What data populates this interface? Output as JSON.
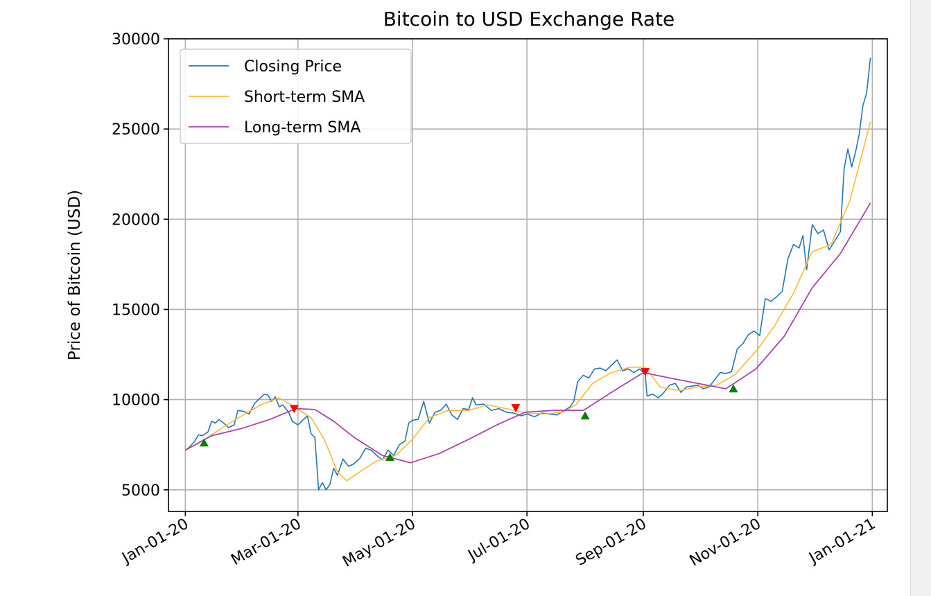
{
  "chart_data": {
    "type": "line",
    "title": "Bitcoin to USD Exchange Rate",
    "xlabel": "",
    "ylabel": "Price of Bitcoin (USD)",
    "xlim": [
      "2019-12-23",
      "2021-01-09"
    ],
    "ylim": [
      3800,
      30000
    ],
    "x_ticks": [
      "2020-01-01",
      "2020-03-01",
      "2020-05-01",
      "2020-07-01",
      "2020-09-01",
      "2020-11-01",
      "2021-01-01"
    ],
    "x_tick_labels": [
      "Jan-01-20",
      "Mar-01-20",
      "May-01-20",
      "Jul-01-20",
      "Sep-01-20",
      "Nov-01-20",
      "Jan-01-21"
    ],
    "y_ticks": [
      5000,
      10000,
      15000,
      20000,
      25000,
      30000
    ],
    "y_tick_labels": [
      "5000",
      "10000",
      "15000",
      "20000",
      "25000",
      "30000"
    ],
    "grid": true,
    "legend": "top-left",
    "series": [
      {
        "name": "Closing Price",
        "color": "#1f77b4",
        "points": [
          [
            "2020-01-01",
            7200
          ],
          [
            "2020-01-03",
            7350
          ],
          [
            "2020-01-06",
            7700
          ],
          [
            "2020-01-08",
            8050
          ],
          [
            "2020-01-10",
            8000
          ],
          [
            "2020-01-13",
            8200
          ],
          [
            "2020-01-15",
            8800
          ],
          [
            "2020-01-17",
            8700
          ],
          [
            "2020-01-19",
            8900
          ],
          [
            "2020-01-22",
            8650
          ],
          [
            "2020-01-24",
            8450
          ],
          [
            "2020-01-27",
            8600
          ],
          [
            "2020-01-29",
            9400
          ],
          [
            "2020-02-01",
            9350
          ],
          [
            "2020-02-04",
            9200
          ],
          [
            "2020-02-07",
            9800
          ],
          [
            "2020-02-10",
            10100
          ],
          [
            "2020-02-12",
            10300
          ],
          [
            "2020-02-14",
            10250
          ],
          [
            "2020-02-16",
            9900
          ],
          [
            "2020-02-18",
            10150
          ],
          [
            "2020-02-20",
            9600
          ],
          [
            "2020-02-22",
            9700
          ],
          [
            "2020-02-25",
            9300
          ],
          [
            "2020-02-27",
            8800
          ],
          [
            "2020-03-01",
            8600
          ],
          [
            "2020-03-03",
            8800
          ],
          [
            "2020-03-06",
            9100
          ],
          [
            "2020-03-08",
            8100
          ],
          [
            "2020-03-10",
            7900
          ],
          [
            "2020-03-12",
            5000
          ],
          [
            "2020-03-14",
            5400
          ],
          [
            "2020-03-16",
            5000
          ],
          [
            "2020-03-18",
            5300
          ],
          [
            "2020-03-20",
            6200
          ],
          [
            "2020-03-22",
            5800
          ],
          [
            "2020-03-25",
            6700
          ],
          [
            "2020-03-28",
            6300
          ],
          [
            "2020-03-31",
            6450
          ],
          [
            "2020-04-03",
            6750
          ],
          [
            "2020-04-06",
            7300
          ],
          [
            "2020-04-09",
            7200
          ],
          [
            "2020-04-12",
            6900
          ],
          [
            "2020-04-15",
            6650
          ],
          [
            "2020-04-18",
            7200
          ],
          [
            "2020-04-21",
            6900
          ],
          [
            "2020-04-24",
            7500
          ],
          [
            "2020-04-27",
            7700
          ],
          [
            "2020-04-29",
            8700
          ],
          [
            "2020-05-01",
            8850
          ],
          [
            "2020-05-04",
            8900
          ],
          [
            "2020-05-07",
            9900
          ],
          [
            "2020-05-10",
            8700
          ],
          [
            "2020-05-13",
            9300
          ],
          [
            "2020-05-16",
            9400
          ],
          [
            "2020-05-19",
            9750
          ],
          [
            "2020-05-22",
            9150
          ],
          [
            "2020-05-25",
            8900
          ],
          [
            "2020-05-28",
            9500
          ],
          [
            "2020-05-31",
            9450
          ],
          [
            "2020-06-02",
            10100
          ],
          [
            "2020-06-04",
            9700
          ],
          [
            "2020-06-08",
            9750
          ],
          [
            "2020-06-12",
            9400
          ],
          [
            "2020-06-16",
            9500
          ],
          [
            "2020-06-20",
            9300
          ],
          [
            "2020-06-24",
            9250
          ],
          [
            "2020-06-28",
            9100
          ],
          [
            "2020-07-01",
            9200
          ],
          [
            "2020-07-05",
            9050
          ],
          [
            "2020-07-09",
            9250
          ],
          [
            "2020-07-13",
            9200
          ],
          [
            "2020-07-17",
            9150
          ],
          [
            "2020-07-21",
            9400
          ],
          [
            "2020-07-24",
            9600
          ],
          [
            "2020-07-26",
            9900
          ],
          [
            "2020-07-28",
            11000
          ],
          [
            "2020-07-31",
            11350
          ],
          [
            "2020-08-03",
            11200
          ],
          [
            "2020-08-06",
            11700
          ],
          [
            "2020-08-09",
            11750
          ],
          [
            "2020-08-12",
            11600
          ],
          [
            "2020-08-15",
            11900
          ],
          [
            "2020-08-18",
            12200
          ],
          [
            "2020-08-21",
            11600
          ],
          [
            "2020-08-24",
            11700
          ],
          [
            "2020-08-27",
            11500
          ],
          [
            "2020-08-30",
            11700
          ],
          [
            "2020-09-02",
            11400
          ],
          [
            "2020-09-03",
            10200
          ],
          [
            "2020-09-06",
            10300
          ],
          [
            "2020-09-09",
            10100
          ],
          [
            "2020-09-12",
            10400
          ],
          [
            "2020-09-15",
            10800
          ],
          [
            "2020-09-18",
            10900
          ],
          [
            "2020-09-21",
            10400
          ],
          [
            "2020-09-24",
            10700
          ],
          [
            "2020-09-27",
            10750
          ],
          [
            "2020-09-30",
            10800
          ],
          [
            "2020-10-03",
            10600
          ],
          [
            "2020-10-06",
            10700
          ],
          [
            "2020-10-09",
            11100
          ],
          [
            "2020-10-12",
            11500
          ],
          [
            "2020-10-15",
            11450
          ],
          [
            "2020-10-18",
            11550
          ],
          [
            "2020-10-21",
            12800
          ],
          [
            "2020-10-24",
            13100
          ],
          [
            "2020-10-27",
            13600
          ],
          [
            "2020-10-30",
            13800
          ],
          [
            "2020-11-02",
            13550
          ],
          [
            "2020-11-05",
            15600
          ],
          [
            "2020-11-08",
            15450
          ],
          [
            "2020-11-11",
            15700
          ],
          [
            "2020-11-14",
            16000
          ],
          [
            "2020-11-17",
            17800
          ],
          [
            "2020-11-20",
            18600
          ],
          [
            "2020-11-23",
            18400
          ],
          [
            "2020-11-25",
            19100
          ],
          [
            "2020-11-27",
            17200
          ],
          [
            "2020-11-30",
            19700
          ],
          [
            "2020-12-03",
            19200
          ],
          [
            "2020-12-06",
            19400
          ],
          [
            "2020-12-09",
            18300
          ],
          [
            "2020-12-12",
            18800
          ],
          [
            "2020-12-15",
            19300
          ],
          [
            "2020-12-17",
            22800
          ],
          [
            "2020-12-19",
            23900
          ],
          [
            "2020-12-21",
            22900
          ],
          [
            "2020-12-23",
            23700
          ],
          [
            "2020-12-25",
            24700
          ],
          [
            "2020-12-27",
            26300
          ],
          [
            "2020-12-29",
            27000
          ],
          [
            "2020-12-31",
            28950
          ]
        ]
      },
      {
        "name": "Short-term SMA",
        "color": "#ffb833",
        "points": [
          [
            "2020-01-01",
            7200
          ],
          [
            "2020-01-10",
            7700
          ],
          [
            "2020-01-20",
            8400
          ],
          [
            "2020-01-31",
            9100
          ],
          [
            "2020-02-10",
            9700
          ],
          [
            "2020-02-20",
            10100
          ],
          [
            "2020-02-28",
            9600
          ],
          [
            "2020-03-08",
            9000
          ],
          [
            "2020-03-15",
            7800
          ],
          [
            "2020-03-22",
            6000
          ],
          [
            "2020-03-27",
            5500
          ],
          [
            "2020-04-03",
            6000
          ],
          [
            "2020-04-12",
            6600
          ],
          [
            "2020-04-22",
            6900
          ],
          [
            "2020-05-01",
            7800
          ],
          [
            "2020-05-10",
            9000
          ],
          [
            "2020-05-20",
            9400
          ],
          [
            "2020-05-31",
            9400
          ],
          [
            "2020-06-10",
            9700
          ],
          [
            "2020-06-20",
            9500
          ],
          [
            "2020-07-01",
            9250
          ],
          [
            "2020-07-10",
            9200
          ],
          [
            "2020-07-20",
            9300
          ],
          [
            "2020-07-27",
            9700
          ],
          [
            "2020-08-05",
            10900
          ],
          [
            "2020-08-15",
            11500
          ],
          [
            "2020-08-25",
            11800
          ],
          [
            "2020-09-02",
            11800
          ],
          [
            "2020-09-10",
            10700
          ],
          [
            "2020-09-20",
            10500
          ],
          [
            "2020-09-30",
            10700
          ],
          [
            "2020-10-10",
            10800
          ],
          [
            "2020-10-20",
            11400
          ],
          [
            "2020-11-01",
            12800
          ],
          [
            "2020-11-10",
            14100
          ],
          [
            "2020-11-20",
            15900
          ],
          [
            "2020-11-30",
            18200
          ],
          [
            "2020-12-10",
            18600
          ],
          [
            "2020-12-20",
            21000
          ],
          [
            "2020-12-31",
            25400
          ]
        ]
      },
      {
        "name": "Long-term SMA",
        "color": "#aa44aa",
        "points": [
          [
            "2020-01-01",
            7200
          ],
          [
            "2020-01-15",
            8000
          ],
          [
            "2020-01-31",
            8400
          ],
          [
            "2020-02-15",
            8900
          ],
          [
            "2020-02-29",
            9500
          ],
          [
            "2020-03-10",
            9450
          ],
          [
            "2020-03-20",
            8800
          ],
          [
            "2020-03-31",
            7900
          ],
          [
            "2020-04-15",
            6900
          ],
          [
            "2020-04-30",
            6500
          ],
          [
            "2020-05-15",
            7000
          ],
          [
            "2020-05-31",
            7800
          ],
          [
            "2020-06-15",
            8600
          ],
          [
            "2020-06-30",
            9300
          ],
          [
            "2020-07-15",
            9400
          ],
          [
            "2020-07-31",
            9400
          ],
          [
            "2020-08-15",
            10400
          ],
          [
            "2020-09-01",
            11500
          ],
          [
            "2020-09-15",
            11200
          ],
          [
            "2020-09-30",
            10900
          ],
          [
            "2020-10-15",
            10600
          ],
          [
            "2020-10-31",
            11700
          ],
          [
            "2020-11-15",
            13500
          ],
          [
            "2020-11-30",
            16200
          ],
          [
            "2020-12-15",
            18100
          ],
          [
            "2020-12-31",
            20900
          ]
        ]
      }
    ],
    "buy_signals": {
      "color": "#008000",
      "marker": "triangle-up",
      "points": [
        [
          "2020-01-11",
          7600
        ],
        [
          "2020-04-19",
          6800
        ],
        [
          "2020-08-01",
          9100
        ],
        [
          "2020-10-19",
          10600
        ]
      ]
    },
    "sell_signals": {
      "color": "#ff0000",
      "marker": "triangle-down",
      "points": [
        [
          "2020-02-28",
          9500
        ],
        [
          "2020-06-25",
          9550
        ],
        [
          "2020-09-02",
          11550
        ]
      ]
    }
  }
}
